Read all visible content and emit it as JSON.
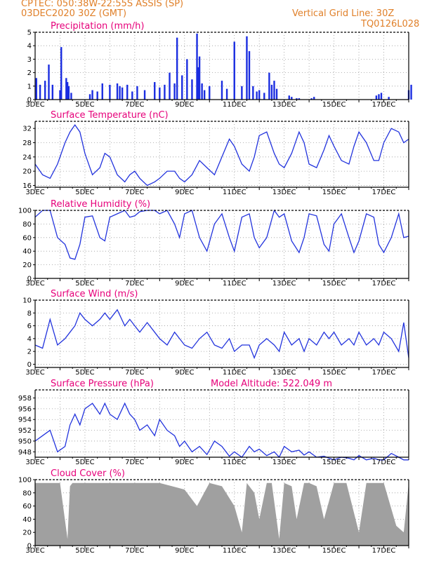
{
  "header": {
    "line1_left": "CPTEC:  050:38W-22:55S  ASSIS (SP)",
    "line2_left": "03DEC2020 30Z (GMT)",
    "line1_right": "Vertical Grid Line: 30Z",
    "line2_right": "TQ0126L028"
  },
  "colors": {
    "line": "#2233dd",
    "bars": "#1a2de0",
    "cloud": "#a0a0a0",
    "title": "#e6007a",
    "header": "#e0802a"
  },
  "chart_data": [
    {
      "type": "bar",
      "title": "Precipitation (mm/h)",
      "x_ticks": [
        "3DEC",
        "5DEC",
        "7DEC",
        "9DEC",
        "11DEC",
        "13DEC",
        "15DEC",
        "17DEC"
      ],
      "ylim": [
        0,
        5
      ],
      "y_ticks": [
        0,
        1,
        2,
        3,
        4,
        5
      ],
      "x": [
        0.05,
        0.2,
        0.4,
        0.55,
        0.7,
        1.0,
        1.05,
        1.25,
        1.3,
        1.35,
        1.45,
        2.2,
        2.3,
        2.5,
        2.7,
        3.0,
        3.3,
        3.4,
        3.5,
        3.7,
        3.9,
        4.1,
        4.4,
        4.8,
        5.0,
        5.2,
        5.4,
        5.6,
        5.7,
        5.9,
        6.1,
        6.3,
        6.5,
        6.55,
        6.6,
        6.7,
        6.8,
        7.0,
        7.5,
        7.7,
        8.0,
        8.3,
        8.5,
        8.6,
        8.75,
        8.9,
        9.0,
        9.2,
        9.4,
        9.5,
        9.6,
        9.7,
        10.2,
        10.3,
        10.5,
        10.6,
        11.1,
        11.2,
        13.7,
        13.8,
        13.9,
        14.2,
        15.0,
        15.1
      ],
      "values": [
        1.6,
        1.1,
        1.4,
        2.6,
        1.1,
        0.7,
        3.9,
        1.6,
        1.3,
        1.0,
        0.5,
        0.4,
        0.7,
        0.6,
        1.2,
        1.1,
        1.2,
        1.0,
        0.9,
        1.1,
        0.6,
        1.0,
        0.7,
        1.3,
        0.9,
        1.1,
        2.0,
        1.2,
        4.6,
        1.8,
        3.0,
        1.5,
        4.9,
        2.4,
        3.2,
        1.2,
        0.7,
        1.0,
        1.4,
        0.8,
        4.3,
        1.0,
        4.7,
        3.6,
        1.0,
        0.6,
        0.7,
        0.5,
        2.0,
        1.1,
        1.4,
        0.8,
        0.3,
        0.2,
        0.1,
        0.1,
        0.1,
        0.2,
        0.3,
        0.4,
        0.5,
        0.2,
        0.7,
        1.1
      ]
    },
    {
      "type": "line",
      "title": "Surface Temperature (nC)",
      "x_ticks": [
        "3DEC",
        "5DEC",
        "7DEC",
        "9DEC",
        "11DEC",
        "13DEC",
        "15DEC",
        "17DEC"
      ],
      "ylim": [
        15.5,
        34
      ],
      "y_ticks": [
        16,
        20,
        24,
        28,
        32
      ],
      "x": [
        0,
        0.3,
        0.6,
        0.9,
        1.2,
        1.4,
        1.6,
        1.8,
        2.0,
        2.3,
        2.6,
        2.8,
        3.0,
        3.3,
        3.6,
        3.8,
        4.0,
        4.2,
        4.5,
        4.8,
        5.0,
        5.3,
        5.6,
        5.8,
        6.0,
        6.3,
        6.6,
        6.9,
        7.2,
        7.5,
        7.8,
        8.0,
        8.3,
        8.6,
        8.8,
        9.0,
        9.3,
        9.6,
        9.8,
        10.0,
        10.3,
        10.6,
        10.8,
        11.0,
        11.3,
        11.6,
        11.8,
        12.0,
        12.3,
        12.6,
        12.8,
        13.0,
        13.3,
        13.6,
        13.8,
        14.0,
        14.3,
        14.6,
        14.8,
        15.0
      ],
      "values": [
        22,
        19,
        18,
        22,
        28,
        31,
        33,
        31,
        25,
        19,
        21,
        25,
        24,
        19,
        17,
        19,
        20,
        18,
        16,
        17,
        18,
        20,
        20,
        18,
        17,
        19,
        23,
        21,
        19,
        24,
        29,
        27,
        22,
        20,
        24,
        30,
        31,
        25,
        22,
        21,
        25,
        31,
        28,
        22,
        21,
        26,
        30,
        27,
        23,
        22,
        27,
        31,
        28,
        23,
        23,
        28,
        32,
        31,
        28,
        29
      ]
    },
    {
      "type": "line",
      "title": "Relative Humidity (%)",
      "x_ticks": [
        "3DEC",
        "5DEC",
        "7DEC",
        "9DEC",
        "11DEC",
        "13DEC",
        "15DEC",
        "17DEC"
      ],
      "ylim": [
        0,
        100
      ],
      "y_ticks": [
        0,
        20,
        40,
        60,
        80,
        100
      ],
      "x": [
        0,
        0.3,
        0.6,
        0.9,
        1.2,
        1.4,
        1.6,
        1.8,
        2.0,
        2.3,
        2.6,
        2.8,
        3.0,
        3.3,
        3.6,
        3.8,
        4.0,
        4.2,
        4.5,
        4.8,
        5.0,
        5.3,
        5.6,
        5.8,
        6.0,
        6.3,
        6.6,
        6.9,
        7.2,
        7.5,
        7.8,
        8.0,
        8.3,
        8.6,
        8.8,
        9.0,
        9.3,
        9.6,
        9.8,
        10.0,
        10.3,
        10.6,
        10.8,
        11.0,
        11.3,
        11.6,
        11.8,
        12.0,
        12.3,
        12.6,
        12.8,
        13.0,
        13.3,
        13.6,
        13.8,
        14.0,
        14.3,
        14.6,
        14.8,
        15.0
      ],
      "values": [
        90,
        100,
        100,
        60,
        50,
        30,
        28,
        50,
        90,
        92,
        60,
        55,
        90,
        95,
        100,
        90,
        92,
        98,
        100,
        100,
        95,
        100,
        80,
        60,
        95,
        100,
        60,
        40,
        80,
        95,
        60,
        40,
        90,
        95,
        60,
        45,
        60,
        100,
        90,
        95,
        55,
        38,
        60,
        95,
        92,
        50,
        40,
        80,
        95,
        60,
        38,
        55,
        95,
        90,
        50,
        38,
        60,
        95,
        60,
        62
      ]
    },
    {
      "type": "line",
      "title": "Surface Wind (m/s)",
      "x_ticks": [
        "3DEC",
        "5DEC",
        "7DEC",
        "9DEC",
        "11DEC",
        "13DEC",
        "15DEC",
        "17DEC"
      ],
      "ylim": [
        -0.5,
        10
      ],
      "y_ticks": [
        0,
        2,
        4,
        6,
        8,
        10
      ],
      "x": [
        0,
        0.3,
        0.6,
        0.9,
        1.2,
        1.4,
        1.6,
        1.8,
        2.0,
        2.3,
        2.6,
        2.8,
        3.0,
        3.3,
        3.6,
        3.8,
        4.0,
        4.2,
        4.5,
        4.8,
        5.0,
        5.3,
        5.6,
        5.8,
        6.0,
        6.3,
        6.6,
        6.9,
        7.2,
        7.5,
        7.8,
        8.0,
        8.3,
        8.6,
        8.8,
        9.0,
        9.3,
        9.6,
        9.8,
        10.0,
        10.3,
        10.6,
        10.8,
        11.0,
        11.3,
        11.6,
        11.8,
        12.0,
        12.3,
        12.6,
        12.8,
        13.0,
        13.3,
        13.6,
        13.8,
        14.0,
        14.3,
        14.6,
        14.8,
        15.0
      ],
      "values": [
        3,
        2.5,
        7,
        3,
        4,
        5,
        6,
        8,
        7,
        6,
        7,
        8,
        7,
        8.5,
        6,
        7,
        6,
        5,
        6.5,
        5,
        4,
        3,
        5,
        4,
        3,
        2.5,
        4,
        5,
        3,
        2.5,
        4,
        2,
        3,
        3,
        1,
        3,
        4,
        3,
        2,
        5,
        3,
        4,
        2,
        4,
        3,
        5,
        4,
        5,
        3,
        4,
        3,
        5,
        3,
        4,
        3,
        5,
        4,
        2,
        6.5,
        1
      ]
    },
    {
      "type": "line",
      "title": "Surface Pressure (hPa)",
      "x_ticks": [
        "3DEC",
        "5DEC",
        "7DEC",
        "9DEC",
        "11DEC",
        "13DEC",
        "15DEC",
        "17DEC"
      ],
      "ylim": [
        947,
        959.5
      ],
      "y_ticks": [
        948,
        950,
        952,
        954,
        956,
        958
      ],
      "x": [
        0,
        0.3,
        0.6,
        0.9,
        1.2,
        1.4,
        1.6,
        1.8,
        2.0,
        2.3,
        2.6,
        2.8,
        3.0,
        3.3,
        3.6,
        3.8,
        4.0,
        4.2,
        4.5,
        4.8,
        5.0,
        5.3,
        5.6,
        5.8,
        6.0,
        6.3,
        6.6,
        6.9,
        7.2,
        7.5,
        7.8,
        8.0,
        8.3,
        8.6,
        8.8,
        9.0,
        9.3,
        9.6,
        9.8,
        10.0,
        10.3,
        10.6,
        10.8,
        11.0,
        11.3,
        11.6,
        11.8,
        12.0,
        12.3,
        12.6,
        12.8,
        13.0,
        13.3,
        13.6,
        13.8,
        14.0,
        14.3,
        14.6,
        14.8,
        15.0
      ],
      "values": [
        950,
        951,
        952,
        948,
        949,
        953,
        955,
        953,
        956,
        957,
        955,
        957,
        955,
        954,
        957,
        955,
        954,
        952,
        953,
        951,
        954,
        952,
        951,
        949,
        950,
        948,
        949,
        947.5,
        950,
        949,
        947.2,
        948,
        947,
        949,
        948,
        948.5,
        947.3,
        948,
        947,
        949,
        948,
        948.3,
        947.4,
        948,
        947,
        947.2,
        946.8,
        946.5,
        947,
        946.8,
        946.5,
        947.3,
        946.5,
        946.8,
        946.5,
        946.5,
        947.7,
        947,
        946.5,
        946.5
      ]
    },
    {
      "type": "area",
      "title": "Cloud Cover (%)",
      "x_ticks": [
        "3DEC",
        "5DEC",
        "7DEC",
        "9DEC",
        "11DEC",
        "13DEC",
        "15DEC",
        "17DEC"
      ],
      "ylim": [
        0,
        100
      ],
      "y_ticks": [
        0,
        20,
        40,
        60,
        80,
        100
      ],
      "x": [
        0,
        0.5,
        1.0,
        1.3,
        1.4,
        1.5,
        2.0,
        2.5,
        3.0,
        3.5,
        4.0,
        4.5,
        5.0,
        5.5,
        6.0,
        6.5,
        7.0,
        7.5,
        8.0,
        8.3,
        8.5,
        8.8,
        9.0,
        9.3,
        9.5,
        9.8,
        10.0,
        10.3,
        10.5,
        10.8,
        11.0,
        11.3,
        11.6,
        12.0,
        12.5,
        13.0,
        13.3,
        13.6,
        14.0,
        14.5,
        14.8,
        15.0
      ],
      "values": [
        95,
        95,
        95,
        10,
        90,
        95,
        95,
        95,
        95,
        95,
        95,
        95,
        95,
        90,
        85,
        60,
        95,
        90,
        60,
        20,
        95,
        80,
        40,
        95,
        95,
        10,
        95,
        90,
        40,
        95,
        95,
        90,
        40,
        95,
        95,
        20,
        95,
        95,
        95,
        30,
        20,
        95
      ]
    }
  ],
  "panels": {
    "p1": {
      "title": "Precipitation (mm/h)"
    },
    "p2": {
      "title": "Surface Temperature (nC)"
    },
    "p3": {
      "title": "Relative Humidity (%)"
    },
    "p4": {
      "title": "Surface Wind (m/s)"
    },
    "p5": {
      "title": "Surface Pressure (hPa)",
      "extra": "Model Altitude: 522.049 m"
    },
    "p6": {
      "title": "Cloud Cover (%)"
    }
  }
}
